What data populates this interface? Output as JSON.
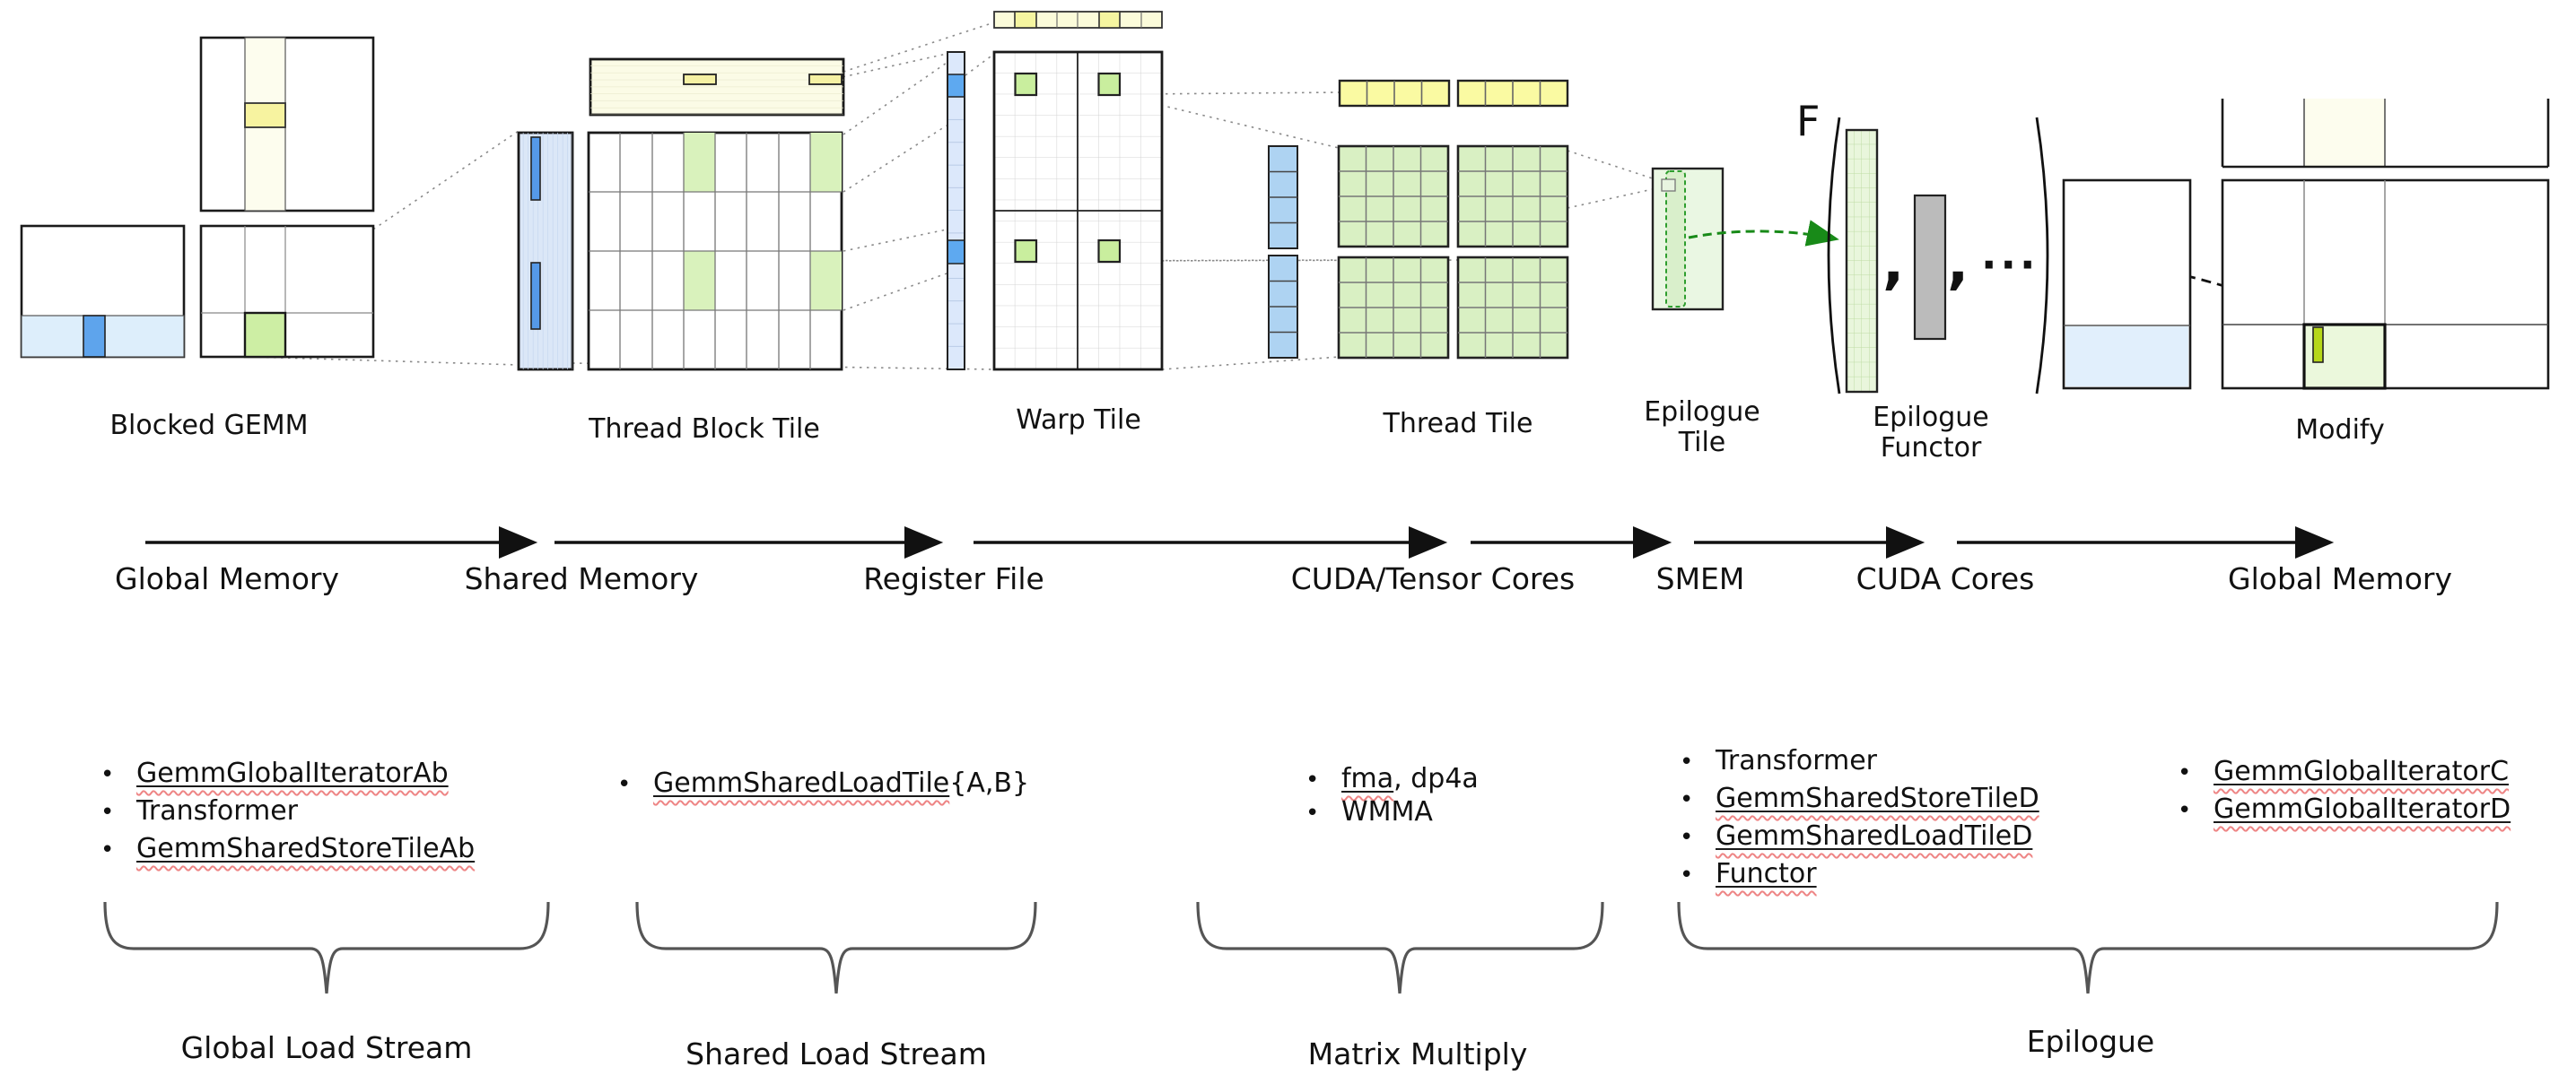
{
  "ui": {
    "bullet": "•"
  },
  "colors": {
    "highlight_blue": "#5ea4ec",
    "light_blue": "#ddeefb",
    "striped_blue": "#dbe7f7",
    "highlight_green": "#cdeea4",
    "light_green": "#d9f0c3",
    "ivory_yellow": "#fbfbe6",
    "highlight_yellow": "#f5f1a3",
    "chartreuse": "#b6d719",
    "gray_operand": "#bbbbbb",
    "green_arrow": "#188a18"
  },
  "stages": {
    "blocked_gemm": "Blocked GEMM",
    "thread_block_tile": "Thread Block Tile",
    "warp_tile": "Warp Tile",
    "thread_tile": "Thread Tile",
    "epilogue_tile": "Epilogue Tile",
    "epilogue_functor": "Epilogue Functor",
    "modify": "Modify"
  },
  "flow": {
    "global_memory_1": "Global Memory",
    "shared_memory": "Shared Memory",
    "register_file": "Register File",
    "cuda_tensor_cores": "CUDA/Tensor Cores",
    "smem": "SMEM",
    "cuda_cores": "CUDA Cores",
    "global_memory_2": "Global Memory"
  },
  "functor": {
    "f": "F",
    "comma1": ",",
    "comma2": ",",
    "ellipsis": "···"
  },
  "braces": {
    "global_load_stream": "Global Load Stream",
    "shared_load_stream": "Shared Load Stream",
    "matrix_multiply": "Matrix Multiply",
    "epilogue": "Epilogue"
  },
  "lists": {
    "global_load": [
      {
        "u": "GemmGlobalIteratorAb",
        "p": ""
      },
      {
        "u": "",
        "p": "Transformer"
      },
      {
        "u": "GemmSharedStoreTileAb",
        "p": ""
      }
    ],
    "shared_load": [
      {
        "u": "GemmSharedLoadTile",
        "p": "{A,B}"
      }
    ],
    "matrix_multiply": [
      {
        "u": "fma",
        "p": ", dp4a"
      },
      {
        "u": "",
        "p": "WMMA"
      }
    ],
    "epilogue": [
      {
        "u": "",
        "p": "Transformer"
      },
      {
        "u": "GemmSharedStoreTileD",
        "p": ""
      },
      {
        "u": "GemmSharedLoadTileD",
        "p": ""
      },
      {
        "u": "Functor",
        "p": ""
      }
    ],
    "global_store": [
      {
        "u": "GemmGlobalIteratorC",
        "p": ""
      },
      {
        "u": "GemmGlobalIteratorD",
        "p": ""
      }
    ]
  }
}
